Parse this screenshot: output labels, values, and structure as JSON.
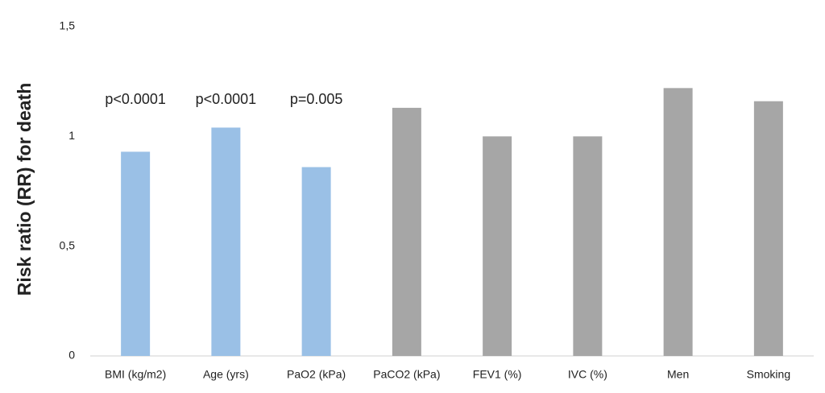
{
  "chart_data": {
    "type": "bar",
    "y_label": "Risk ratio (RR) for death",
    "categories": [
      "BMI (kg/m2)",
      "Age (yrs)",
      "PaO2 (kPa)",
      "PaCO2 (kPa)",
      "FEV1 (%)",
      "IVC (%)",
      "Men",
      "Smoking"
    ],
    "values": [
      0.93,
      1.04,
      0.86,
      1.13,
      1.0,
      1.0,
      1.22,
      1.16
    ],
    "colors": [
      "#9ac0e6",
      "#9ac0e6",
      "#9ac0e6",
      "#a6a6a6",
      "#a6a6a6",
      "#a6a6a6",
      "#a6a6a6",
      "#a6a6a6"
    ],
    "annotations": [
      "p<0.0001",
      "p<0.0001",
      "p=0.005",
      null,
      null,
      null,
      null,
      null
    ],
    "ylim": [
      0,
      1.5
    ],
    "yticks": [
      0,
      {
        "value": 0.5,
        "label": "0,5"
      },
      1,
      {
        "value": 1.5,
        "label": "1,5"
      }
    ],
    "grid": false
  }
}
